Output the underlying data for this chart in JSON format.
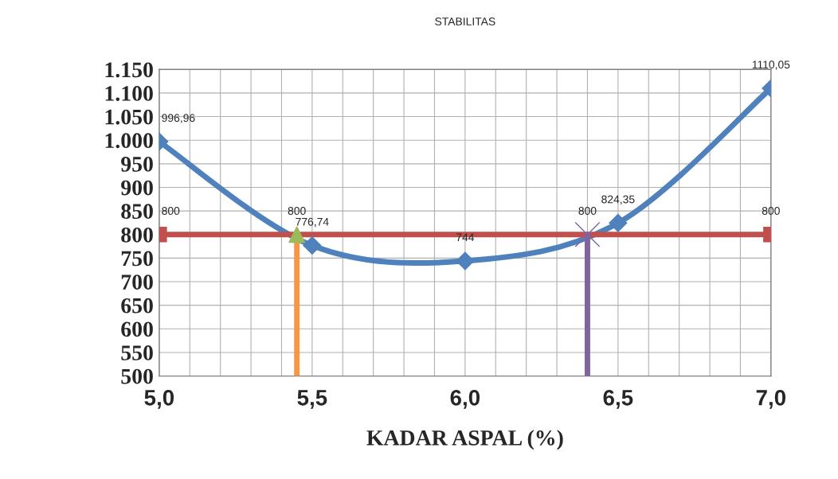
{
  "chart_data": {
    "type": "line",
    "title": "STABILITAS",
    "xlabel": "KADAR ASPAL (%)",
    "xlim": [
      5.0,
      7.0
    ],
    "xticks": [
      {
        "value": 5.0,
        "label": "5,0"
      },
      {
        "value": 5.1,
        "label": null
      },
      {
        "value": 5.2,
        "label": null
      },
      {
        "value": 5.3,
        "label": null
      },
      {
        "value": 5.4,
        "label": null
      },
      {
        "value": 5.5,
        "label": "5,5"
      },
      {
        "value": 5.6,
        "label": null
      },
      {
        "value": 5.7,
        "label": null
      },
      {
        "value": 5.8,
        "label": null
      },
      {
        "value": 5.9,
        "label": null
      },
      {
        "value": 6.0,
        "label": "6,0"
      },
      {
        "value": 6.1,
        "label": null
      },
      {
        "value": 6.2,
        "label": null
      },
      {
        "value": 6.3,
        "label": null
      },
      {
        "value": 6.4,
        "label": null
      },
      {
        "value": 6.5,
        "label": "6,5"
      },
      {
        "value": 6.6,
        "label": null
      },
      {
        "value": 6.7,
        "label": null
      },
      {
        "value": 6.8,
        "label": null
      },
      {
        "value": 6.9,
        "label": null
      },
      {
        "value": 7.0,
        "label": "7,0"
      }
    ],
    "ylim": [
      500,
      1150
    ],
    "yticks": [
      500,
      550,
      600,
      650,
      700,
      750,
      800,
      850,
      900,
      950,
      {
        "value": 1000,
        "label": "1.000"
      },
      {
        "value": 1050,
        "label": "1.050"
      },
      {
        "value": 1100,
        "label": "1.100"
      },
      {
        "value": 1150,
        "label": "1.150"
      }
    ],
    "grid": true,
    "series": [
      {
        "color": "#4f81bd",
        "marker": "diamond",
        "x": [
          5.0,
          5.5,
          6.0,
          6.5,
          7.0
        ],
        "values": [
          996.96,
          776.74,
          744,
          824.35,
          1110.05
        ],
        "value_labels": [
          "996,96",
          "776,74",
          "744",
          "824,35",
          "1110,05"
        ]
      },
      {
        "color": "#c0504d",
        "marker": "square",
        "x": [
          5.0,
          7.0
        ],
        "values": [
          800,
          800
        ],
        "value_labels": [
          "800",
          "800"
        ]
      },
      {
        "color": "#f79646",
        "x": [
          5.45,
          5.45
        ],
        "values": [
          500,
          800
        ]
      },
      {
        "type": "scatter",
        "color": "#9bbb59",
        "marker": "triangle",
        "x": [
          5.45
        ],
        "values": [
          800
        ],
        "value_labels": [
          "800"
        ]
      },
      {
        "color": "#8064a2",
        "x": [
          6.4,
          6.4
        ],
        "values": [
          500,
          800
        ]
      },
      {
        "type": "scatter",
        "color": "#8064a2",
        "marker": "cross",
        "x": [
          6.4
        ],
        "values": [
          800
        ],
        "value_labels": [
          "800"
        ]
      }
    ]
  }
}
